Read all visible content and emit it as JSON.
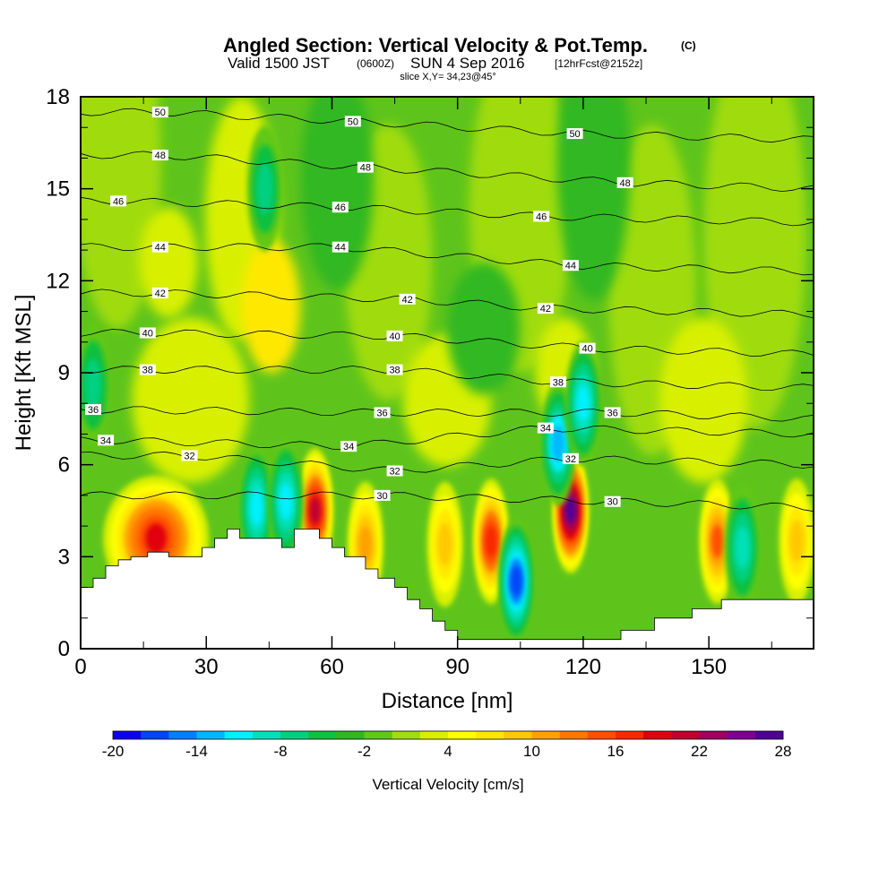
{
  "chart_data": {
    "type": "heatmap",
    "title": "Angled Section: Vertical Velocity & Pot.Temp.",
    "title_unit": "(C)",
    "subtitle": {
      "valid": "Valid 1500 JST",
      "zulu": "(0600Z)",
      "date": "SUN 4 Sep 2016",
      "forecast": "[12hrFcst@2152z]"
    },
    "slice_label": "slice X,Y= 34,23@45°",
    "xlabel": "Distance [nm]",
    "ylabel": "Height [Kft MSL]",
    "xlim": [
      0,
      175
    ],
    "ylim": [
      0,
      18
    ],
    "x_ticks": [
      0,
      30,
      60,
      90,
      120,
      150
    ],
    "y_ticks": [
      0,
      3,
      6,
      9,
      12,
      15,
      18
    ],
    "colorbar": {
      "label": "Vertical Velocity [cm/s]",
      "tick_labels": [
        "-20",
        "-14",
        "-8",
        "-2",
        "4",
        "10",
        "16",
        "22",
        "28"
      ],
      "min": -20,
      "max": 28,
      "step": 2,
      "colors": [
        "#1000f0",
        "#0046f8",
        "#0080ff",
        "#00b8ff",
        "#00f0ff",
        "#00e0b8",
        "#00d080",
        "#10c040",
        "#30b820",
        "#60c818",
        "#a0dc10",
        "#d8f000",
        "#ffff00",
        "#ffe800",
        "#ffc800",
        "#ffa000",
        "#ff7800",
        "#ff5000",
        "#f82800",
        "#e00010",
        "#c00030",
        "#a00060",
        "#800090",
        "#500098"
      ]
    },
    "contour_lines": {
      "variable": "Pot.Temp.",
      "levels": [
        30,
        32,
        34,
        36,
        38,
        40,
        42,
        44,
        46,
        48,
        50
      ],
      "labeled": [
        {
          "text": "50",
          "x": 19,
          "y": 17.5
        },
        {
          "text": "50",
          "x": 65,
          "y": 17.2
        },
        {
          "text": "50",
          "x": 118,
          "y": 16.8
        },
        {
          "text": "48",
          "x": 19,
          "y": 16.1
        },
        {
          "text": "48",
          "x": 68,
          "y": 15.7
        },
        {
          "text": "48",
          "x": 130,
          "y": 15.2
        },
        {
          "text": "46",
          "x": 9,
          "y": 14.6
        },
        {
          "text": "46",
          "x": 62,
          "y": 14.4
        },
        {
          "text": "46",
          "x": 110,
          "y": 14.1
        },
        {
          "text": "44",
          "x": 19,
          "y": 13.1
        },
        {
          "text": "44",
          "x": 62,
          "y": 13.1
        },
        {
          "text": "44",
          "x": 117,
          "y": 12.5
        },
        {
          "text": "42",
          "x": 19,
          "y": 11.6
        },
        {
          "text": "42",
          "x": 78,
          "y": 11.4
        },
        {
          "text": "42",
          "x": 111,
          "y": 11.1
        },
        {
          "text": "40",
          "x": 16,
          "y": 10.3
        },
        {
          "text": "40",
          "x": 75,
          "y": 10.2
        },
        {
          "text": "40",
          "x": 121,
          "y": 9.8
        },
        {
          "text": "38",
          "x": 16,
          "y": 9.1
        },
        {
          "text": "38",
          "x": 75,
          "y": 9.1
        },
        {
          "text": "38",
          "x": 114,
          "y": 8.7
        },
        {
          "text": "36",
          "x": 3,
          "y": 7.8
        },
        {
          "text": "36",
          "x": 72,
          "y": 7.7
        },
        {
          "text": "36",
          "x": 127,
          "y": 7.7
        },
        {
          "text": "34",
          "x": 6,
          "y": 6.8
        },
        {
          "text": "34",
          "x": 64,
          "y": 6.6
        },
        {
          "text": "34",
          "x": 111,
          "y": 7.2
        },
        {
          "text": "32",
          "x": 26,
          "y": 6.3
        },
        {
          "text": "32",
          "x": 75,
          "y": 5.8
        },
        {
          "text": "32",
          "x": 117,
          "y": 6.2
        },
        {
          "text": "30",
          "x": 72,
          "y": 5.0
        },
        {
          "text": "30",
          "x": 127,
          "y": 4.8
        }
      ]
    },
    "updraft_cores": [
      {
        "x": 18,
        "z": 3.6,
        "w": 18
      },
      {
        "x": 56,
        "z": 4.5,
        "w": 20
      },
      {
        "x": 68,
        "z": 3.4,
        "w": 11
      },
      {
        "x": 87,
        "z": 3.4,
        "w": 9
      },
      {
        "x": 98,
        "z": 3.5,
        "w": 17
      },
      {
        "x": 117,
        "z": 4.5,
        "w": 26
      },
      {
        "x": 152,
        "z": 3.5,
        "w": 14
      },
      {
        "x": 171,
        "z": 3.5,
        "w": 9
      }
    ],
    "downdraft_cores": [
      {
        "x": 42,
        "z": 4.6,
        "w": -11
      },
      {
        "x": 49,
        "z": 4.8,
        "w": -12
      },
      {
        "x": 104,
        "z": 2.2,
        "w": -17
      },
      {
        "x": 114,
        "z": 6.7,
        "w": -13
      },
      {
        "x": 120,
        "z": 8.0,
        "w": -11
      },
      {
        "x": 158,
        "z": 3.3,
        "w": -9
      },
      {
        "x": 3,
        "z": 8.6,
        "w": -7
      },
      {
        "x": 44,
        "z": 15.0,
        "w": -7
      }
    ],
    "terrain": [
      [
        0,
        2.0
      ],
      [
        3,
        2.0
      ],
      [
        3,
        2.3
      ],
      [
        6,
        2.3
      ],
      [
        6,
        2.7
      ],
      [
        9,
        2.7
      ],
      [
        9,
        2.9
      ],
      [
        12,
        2.9
      ],
      [
        12,
        3.0
      ],
      [
        16,
        3.0
      ],
      [
        16,
        3.15
      ],
      [
        21,
        3.15
      ],
      [
        21,
        3.0
      ],
      [
        29,
        3.0
      ],
      [
        29,
        3.3
      ],
      [
        32,
        3.3
      ],
      [
        32,
        3.6
      ],
      [
        35,
        3.6
      ],
      [
        35,
        3.9
      ],
      [
        38,
        3.9
      ],
      [
        38,
        3.6
      ],
      [
        48,
        3.6
      ],
      [
        48,
        3.3
      ],
      [
        51,
        3.3
      ],
      [
        51,
        3.9
      ],
      [
        57,
        3.9
      ],
      [
        57,
        3.6
      ],
      [
        60,
        3.6
      ],
      [
        60,
        3.3
      ],
      [
        63,
        3.3
      ],
      [
        63,
        3.0
      ],
      [
        68,
        3.0
      ],
      [
        68,
        2.6
      ],
      [
        71,
        2.6
      ],
      [
        71,
        2.3
      ],
      [
        75,
        2.3
      ],
      [
        75,
        2.0
      ],
      [
        78,
        2.0
      ],
      [
        78,
        1.6
      ],
      [
        81,
        1.6
      ],
      [
        81,
        1.3
      ],
      [
        84,
        1.3
      ],
      [
        84,
        0.9
      ],
      [
        87,
        0.9
      ],
      [
        87,
        0.6
      ],
      [
        90,
        0.6
      ],
      [
        90,
        0.3
      ],
      [
        129,
        0.3
      ],
      [
        129,
        0.6
      ],
      [
        137,
        0.6
      ],
      [
        137,
        1.0
      ],
      [
        146,
        1.0
      ],
      [
        146,
        1.3
      ],
      [
        153,
        1.3
      ],
      [
        153,
        1.6
      ],
      [
        175,
        1.6
      ],
      [
        175,
        0
      ],
      [
        0,
        0
      ]
    ]
  }
}
